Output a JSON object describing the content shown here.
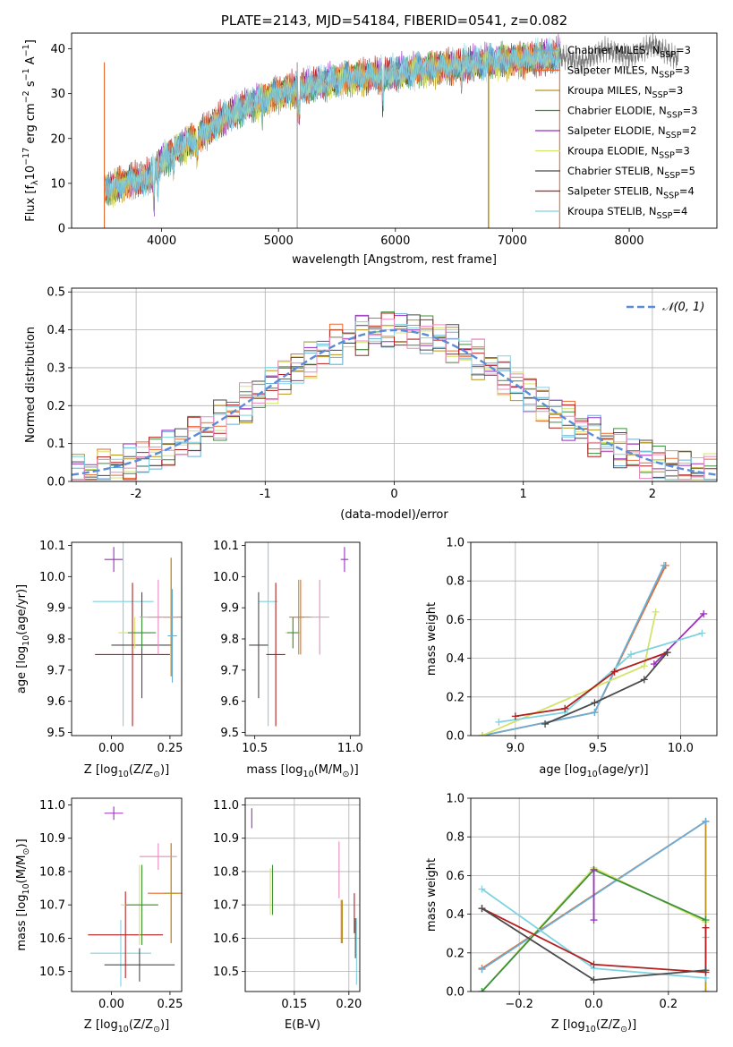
{
  "colors": {
    "Chabrier MILES": "#6aaed6",
    "Salpeter MILES": "#e6692d",
    "Kroupa MILES": "#b8941f",
    "Chabrier ELODIE": "#3d8f3d",
    "Salpeter ELODIE": "#9b2fc0",
    "Kroupa ELODIE": "#d4e36b",
    "Chabrier STELIB": "#4a4a4a",
    "Salpeter STELIB": "#b21f1f",
    "Kroupa STELIB": "#7fd3e0",
    "pink": "#e88ac0",
    "normal": "#5b8bd9",
    "grid": "#b0b0b0"
  },
  "chart_data": [
    {
      "id": "spectrum",
      "type": "line",
      "title": "PLATE=2143, MJD=54184, FIBERID=0541, z=0.082",
      "xlabel": "wavelength [Angstrom, rest frame]",
      "ylabel_parts": [
        "Flux [f",
        "λ",
        "10",
        "−17",
        " erg cm",
        "−2",
        " s",
        "−1",
        " A",
        "−1",
        "]"
      ],
      "xlim": [
        3230,
        8750
      ],
      "ylim": [
        0,
        43.5
      ],
      "xticks": [
        4000,
        5000,
        6000,
        7000,
        8000
      ],
      "yticks": [
        0,
        10,
        20,
        30,
        40
      ],
      "grid": false,
      "legend_position": "right",
      "legend": [
        {
          "name": "Chabrier MILES",
          "ssp": "3"
        },
        {
          "name": "Salpeter MILES",
          "ssp": "3"
        },
        {
          "name": "Kroupa MILES",
          "ssp": "3"
        },
        {
          "name": "Chabrier ELODIE",
          "ssp": "3"
        },
        {
          "name": "Salpeter ELODIE",
          "ssp": "2"
        },
        {
          "name": "Kroupa ELODIE",
          "ssp": "3"
        },
        {
          "name": "Chabrier STELIB",
          "ssp": "5"
        },
        {
          "name": "Salpeter STELIB",
          "ssp": "4"
        },
        {
          "name": "Kroupa STELIB",
          "ssp": "4"
        }
      ],
      "legend_label_pre": "N",
      "legend_label_sub": "SSP",
      "continuum": {
        "x": [
          3510,
          3700,
          3900,
          4000,
          4150,
          4300,
          4500,
          4700,
          5000,
          5300,
          5600,
          6000,
          6400,
          6800,
          7000,
          7200,
          7400
        ],
        "y": [
          8.5,
          10,
          11.5,
          15,
          18,
          20,
          24,
          27,
          30,
          32,
          33.5,
          34.5,
          36,
          37,
          37.5,
          38,
          38.5
        ]
      },
      "observed_extension": {
        "x": [
          7400,
          7600,
          7800,
          8000,
          8200,
          8400
        ],
        "y": [
          38.5,
          37,
          40,
          38,
          41,
          38
        ]
      }
    },
    {
      "id": "residuals",
      "type": "histogram",
      "xlabel": "(data-model)/error",
      "ylabel": "Normed distribution",
      "xlim": [
        -2.5,
        2.5
      ],
      "ylim": [
        0,
        0.51
      ],
      "xticks": [
        -2,
        -1,
        0,
        1,
        2
      ],
      "yticks": [
        0.0,
        0.1,
        0.2,
        0.3,
        0.4,
        0.5
      ],
      "grid": true,
      "legend": "𝒩(0, 1)",
      "legend_position": "upper right",
      "bin_width": 0.1
    },
    {
      "id": "age-vs-Z",
      "type": "errorbar",
      "xlabel_pre": "Z [log",
      "xlabel_sub": "10",
      "xlabel_post": "(Z/Z",
      "xlabel_sub2": "⊙",
      "xlabel_end": ")]",
      "ylabel_pre": "age  [log",
      "ylabel_sub": "10",
      "ylabel_post": "(age/yr)]",
      "xlim": [
        -0.17,
        0.3
      ],
      "ylim": [
        9.49,
        10.11
      ],
      "xticks": [
        0.0,
        0.25
      ],
      "xtick_labels": [
        "0.00",
        "0.25"
      ],
      "yticks": [
        9.5,
        9.6,
        9.7,
        9.8,
        9.9,
        10.0,
        10.1
      ],
      "grid": false,
      "points": [
        {
          "series": "Salpeter ELODIE",
          "x": 0.01,
          "y": 10.055,
          "xerr": 0.04,
          "yerr": 0.04
        },
        {
          "series": "Kroupa STELIB",
          "x": 0.05,
          "y": 9.92,
          "xerr": 0.13,
          "yerr": 0.4
        },
        {
          "series": "Chabrier STELIB",
          "x": 0.13,
          "y": 9.78,
          "xerr": 0.13,
          "yerr": 0.17
        },
        {
          "series": "Salpeter STELIB",
          "x": 0.09,
          "y": 9.75,
          "xerr": 0.16,
          "yerr": 0.23
        },
        {
          "series": "Kroupa ELODIE",
          "x": 0.1,
          "y": 9.82,
          "xerr": 0.07,
          "yerr": 0.05
        },
        {
          "series": "Chabrier ELODIE",
          "x": 0.13,
          "y": 9.82,
          "xerr": 0.06,
          "yerr": 0.05
        },
        {
          "series": "Salpeter MILES",
          "x": 0.255,
          "y": 9.87,
          "xerr": 0.1,
          "yerr": 0.19
        },
        {
          "series": "Kroupa MILES",
          "x": 0.255,
          "y": 9.87,
          "xerr": 0.03,
          "yerr": 0.19
        },
        {
          "series": "Chabrier MILES",
          "x": 0.26,
          "y": 9.81,
          "xerr": 0.02,
          "yerr": 0.15
        },
        {
          "series": "pink",
          "x": 0.2,
          "y": 9.87,
          "xerr": 0.08,
          "yerr": 0.12
        }
      ]
    },
    {
      "id": "age-vs-mass",
      "type": "errorbar",
      "xlabel_pre": "mass [log",
      "xlabel_sub": "10",
      "xlabel_post": "(M/M",
      "xlabel_sub2": "⊙",
      "xlabel_end": ")]",
      "xlim": [
        10.45,
        11.05
      ],
      "ylim": [
        9.49,
        10.11
      ],
      "xticks": [
        10.5,
        11.0
      ],
      "xtick_labels": [
        "10.5",
        "11.0"
      ],
      "yticks": [
        9.5,
        9.6,
        9.7,
        9.8,
        9.9,
        10.0,
        10.1
      ],
      "grid": false,
      "points": [
        {
          "series": "Salpeter ELODIE",
          "x": 10.97,
          "y": 10.055,
          "xerr": 0.02,
          "yerr": 0.04
        },
        {
          "series": "Kroupa STELIB",
          "x": 10.57,
          "y": 9.92,
          "xerr": 0.05,
          "yerr": 0.4
        },
        {
          "series": "Chabrier STELIB",
          "x": 10.52,
          "y": 9.78,
          "xerr": 0.05,
          "yerr": 0.17
        },
        {
          "series": "Salpeter STELIB",
          "x": 10.61,
          "y": 9.75,
          "xerr": 0.05,
          "yerr": 0.23
        },
        {
          "series": "Kroupa ELODIE",
          "x": 10.7,
          "y": 9.82,
          "xerr": 0.04,
          "yerr": 0.05
        },
        {
          "series": "Chabrier ELODIE",
          "x": 10.7,
          "y": 9.82,
          "xerr": 0.03,
          "yerr": 0.05
        },
        {
          "series": "Salpeter MILES",
          "x": 10.74,
          "y": 9.87,
          "xerr": 0.06,
          "yerr": 0.12
        },
        {
          "series": "Kroupa MILES",
          "x": 10.73,
          "y": 9.87,
          "xerr": 0.03,
          "yerr": 0.12
        },
        {
          "series": "pink",
          "x": 10.84,
          "y": 9.87,
          "xerr": 0.05,
          "yerr": 0.12
        }
      ]
    },
    {
      "id": "weight-vs-age",
      "type": "line",
      "xlabel_pre": "age  [log",
      "xlabel_sub": "10",
      "xlabel_post": "(age/yr)]",
      "ylabel": "mass weight",
      "xlim": [
        8.73,
        10.22
      ],
      "ylim": [
        0,
        1
      ],
      "xticks": [
        9.0,
        9.5,
        10.0
      ],
      "xtick_labels": [
        "9.0",
        "9.5",
        "10.0"
      ],
      "yticks": [
        0.0,
        0.2,
        0.4,
        0.6,
        0.8,
        1.0
      ],
      "grid": true,
      "series": [
        {
          "name": "Salpeter MILES",
          "x": [
            8.8,
            9.48,
            9.91
          ],
          "y": [
            0.0,
            0.12,
            0.88
          ]
        },
        {
          "name": "Chabrier MILES",
          "x": [
            8.8,
            9.48,
            9.9
          ],
          "y": [
            0.0,
            0.12,
            0.88
          ]
        },
        {
          "name": "Kroupa ELODIE",
          "x": [
            8.8,
            9.78,
            9.85
          ],
          "y": [
            0.0,
            0.36,
            0.64
          ]
        },
        {
          "name": "Salpeter ELODIE",
          "x": [
            9.84,
            10.14
          ],
          "y": [
            0.37,
            0.63
          ]
        },
        {
          "name": "Kroupa STELIB",
          "x": [
            8.9,
            9.3,
            9.7,
            10.13
          ],
          "y": [
            0.07,
            0.12,
            0.42,
            0.53
          ]
        },
        {
          "name": "Salpeter STELIB",
          "x": [
            9.0,
            9.3,
            9.6,
            9.92
          ],
          "y": [
            0.1,
            0.14,
            0.33,
            0.43
          ]
        },
        {
          "name": "Chabrier STELIB",
          "x": [
            9.18,
            9.48,
            9.78,
            9.92
          ],
          "y": [
            0.06,
            0.17,
            0.29,
            0.43
          ]
        }
      ]
    },
    {
      "id": "mass-vs-Z",
      "type": "errorbar",
      "xlabel_pre": "Z [log",
      "xlabel_sub": "10",
      "xlabel_post": "(Z/Z",
      "xlabel_sub2": "⊙",
      "xlabel_end": ")]",
      "ylabel_pre": "mass [log",
      "ylabel_sub": "10",
      "ylabel_post": "(M/M",
      "ylabel_sub2": "⊙",
      "ylabel_end": ")]",
      "xlim": [
        -0.17,
        0.3
      ],
      "ylim": [
        10.44,
        11.02
      ],
      "xticks": [
        0.0,
        0.25
      ],
      "xtick_labels": [
        "0.00",
        "0.25"
      ],
      "yticks": [
        10.5,
        10.6,
        10.7,
        10.8,
        10.9,
        11.0
      ],
      "grid": false,
      "points": [
        {
          "series": "Salpeter ELODIE",
          "x": 0.01,
          "y": 10.975,
          "xerr": 0.04,
          "yerr": 0.02
        },
        {
          "series": "Kroupa STELIB",
          "x": 0.04,
          "y": 10.555,
          "xerr": 0.13,
          "yerr": 0.1
        },
        {
          "series": "Chabrier STELIB",
          "x": 0.12,
          "y": 10.52,
          "xerr": 0.15,
          "yerr": 0.05
        },
        {
          "series": "Salpeter STELIB",
          "x": 0.06,
          "y": 10.61,
          "xerr": 0.16,
          "yerr": 0.13
        },
        {
          "series": "Kroupa ELODIE",
          "x": 0.12,
          "y": 10.7,
          "xerr": 0.08,
          "yerr": 0.12
        },
        {
          "series": "Chabrier ELODIE",
          "x": 0.13,
          "y": 10.7,
          "xerr": 0.07,
          "yerr": 0.12
        },
        {
          "series": "Salpeter MILES",
          "x": 0.255,
          "y": 10.735,
          "xerr": 0.1,
          "yerr": 0.15
        },
        {
          "series": "Kroupa MILES",
          "x": 0.255,
          "y": 10.735,
          "xerr": 0.03,
          "yerr": 0.15
        },
        {
          "series": "pink",
          "x": 0.2,
          "y": 10.845,
          "xerr": 0.08,
          "yerr": 0.04
        }
      ]
    },
    {
      "id": "mass-vs-EBV",
      "type": "errorbar",
      "xlabel": "E(B-V)",
      "xlim": [
        0.105,
        0.21
      ],
      "ylim": [
        10.44,
        11.02
      ],
      "xticks": [
        0.15,
        0.2
      ],
      "xtick_labels": [
        "0.15",
        "0.20"
      ],
      "yticks": [
        10.5,
        10.6,
        10.7,
        10.8,
        10.9,
        11.0
      ],
      "grid": true,
      "points": [
        {
          "series": "Salpeter ELODIE",
          "x": 0.111,
          "y": 10.96,
          "xerr": 0,
          "yerr": 0.03
        },
        {
          "series": "Kroupa ELODIE",
          "x": 0.128,
          "y": 10.74,
          "xerr": 0,
          "yerr": 0.07
        },
        {
          "series": "Chabrier ELODIE",
          "x": 0.13,
          "y": 10.745,
          "xerr": 0,
          "yerr": 0.075
        },
        {
          "series": "pink",
          "x": 0.191,
          "y": 10.805,
          "xerr": 0,
          "yerr": 0.085
        },
        {
          "series": "Salpeter MILES",
          "x": 0.193,
          "y": 10.65,
          "xerr": 0,
          "yerr": 0.065
        },
        {
          "series": "Kroupa MILES",
          "x": 0.194,
          "y": 10.65,
          "xerr": 0,
          "yerr": 0.065
        },
        {
          "series": "Salpeter STELIB",
          "x": 0.205,
          "y": 10.675,
          "xerr": 0,
          "yerr": 0.06
        },
        {
          "series": "Kroupa STELIB",
          "x": 0.207,
          "y": 10.56,
          "xerr": 0,
          "yerr": 0.1
        },
        {
          "series": "Chabrier STELIB",
          "x": 0.206,
          "y": 10.6,
          "xerr": 0,
          "yerr": 0.06
        }
      ]
    },
    {
      "id": "weight-vs-Z",
      "type": "line",
      "xlabel_pre": "Z [log",
      "xlabel_sub": "10",
      "xlabel_post": "(Z/Z",
      "xlabel_sub2": "⊙",
      "xlabel_end": ")]",
      "ylabel": "mass weight",
      "xlim": [
        -0.33,
        0.33
      ],
      "ylim": [
        0,
        1
      ],
      "xticks": [
        -0.2,
        0.0,
        0.2
      ],
      "xtick_labels": [
        "−0.2",
        "0.0",
        "0.2"
      ],
      "yticks": [
        0.0,
        0.2,
        0.4,
        0.6,
        0.8,
        1.0
      ],
      "grid": true,
      "series": [
        {
          "name": "Salpeter MILES",
          "x": [
            -0.3,
            0.3
          ],
          "y": [
            0.12,
            0.88
          ]
        },
        {
          "name": "Kroupa MILES",
          "x": [
            0.3,
            0.3
          ],
          "y": [
            0.0,
            0.88
          ]
        },
        {
          "name": "Chabrier MILES",
          "x": [
            -0.3,
            0.3
          ],
          "y": [
            0.115,
            0.88
          ]
        },
        {
          "name": "Kroupa ELODIE",
          "x": [
            -0.3,
            0.0,
            0.3
          ],
          "y": [
            0.0,
            0.64,
            0.36
          ]
        },
        {
          "name": "Chabrier ELODIE",
          "x": [
            -0.3,
            0.0,
            0.3
          ],
          "y": [
            0.0,
            0.63,
            0.37
          ]
        },
        {
          "name": "Salpeter ELODIE",
          "x": [
            0.0,
            0.0
          ],
          "y": [
            0.37,
            0.63
          ]
        },
        {
          "name": "Kroupa STELIB",
          "x": [
            -0.3,
            0.0,
            0.3,
            0.3
          ],
          "y": [
            0.53,
            0.12,
            0.07,
            0.28
          ]
        },
        {
          "name": "Salpeter STELIB",
          "x": [
            -0.3,
            0.0,
            0.3,
            0.3
          ],
          "y": [
            0.43,
            0.14,
            0.1,
            0.33
          ]
        },
        {
          "name": "Chabrier STELIB",
          "x": [
            -0.3,
            0.0,
            0.3
          ],
          "y": [
            0.43,
            0.06,
            0.11
          ]
        }
      ]
    }
  ]
}
